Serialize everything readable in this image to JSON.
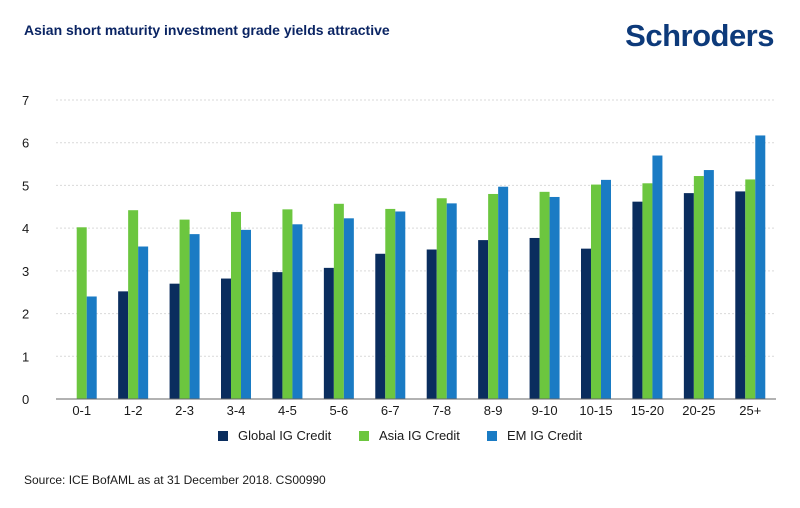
{
  "header": {
    "title": "Asian short maturity investment grade yields attractive",
    "brand": "Schroders"
  },
  "footer": {
    "source": "Source: ICE BofAML as at 31 December 2018. CS00990"
  },
  "colors": {
    "global": "#0a2d5e",
    "asia": "#6cc63f",
    "em": "#1a7bc4",
    "grid": "#d9d9d9",
    "axis": "#666666"
  },
  "chart_data": {
    "type": "bar",
    "title": "Asian short maturity investment grade yields attractive",
    "xlabel": "",
    "ylabel": "",
    "ylim": [
      0,
      7
    ],
    "yticks": [
      0,
      1,
      2,
      3,
      4,
      5,
      6,
      7
    ],
    "grid": true,
    "legend_position": "bottom",
    "categories": [
      "0-1",
      "1-2",
      "2-3",
      "3-4",
      "4-5",
      "5-6",
      "6-7",
      "7-8",
      "8-9",
      "9-10",
      "10-15",
      "15-20",
      "20-25",
      "25+"
    ],
    "series": [
      {
        "name": "Global IG Credit",
        "color_key": "global",
        "values": [
          null,
          2.52,
          2.7,
          2.82,
          2.97,
          3.07,
          3.4,
          3.5,
          3.72,
          3.77,
          3.52,
          4.62,
          4.82,
          4.86
        ]
      },
      {
        "name": "Asia IG Credit",
        "color_key": "asia",
        "values": [
          4.02,
          4.42,
          4.2,
          4.38,
          4.44,
          4.57,
          4.45,
          4.7,
          4.8,
          4.85,
          5.02,
          5.05,
          5.22,
          5.14
        ]
      },
      {
        "name": "EM IG Credit",
        "color_key": "em",
        "values": [
          2.4,
          3.57,
          3.86,
          3.96,
          4.09,
          4.23,
          4.39,
          4.58,
          4.97,
          4.73,
          5.13,
          5.7,
          5.36,
          6.17
        ]
      }
    ]
  }
}
